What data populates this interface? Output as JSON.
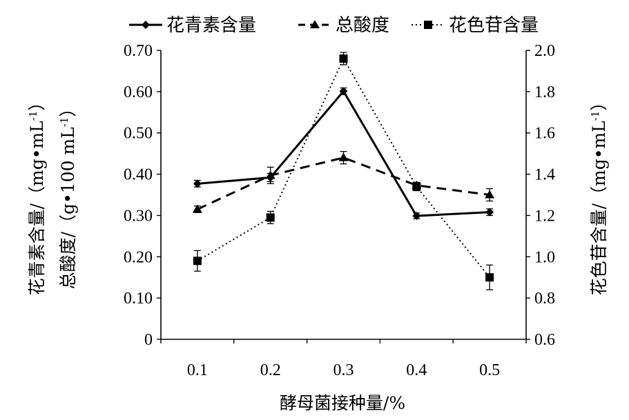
{
  "chart_data": {
    "type": "line",
    "categories": [
      "0.1",
      "0.2",
      "0.3",
      "0.4",
      "0.5"
    ],
    "xlabel": "酵母菌接种量/%",
    "ylabel_left_line1": "花青素含量/（mg•mL",
    "ylabel_left_line2": "总酸度/（g•100 mL",
    "ylabel_right": "花色苷含量/（mg•mL",
    "superscript": "-1",
    "close_paren": "）",
    "ylim_left": [
      0,
      0.7
    ],
    "ylim_right": [
      0.6,
      2.0
    ],
    "yticks_left": [
      "0",
      "0.10",
      "0.20",
      "0.30",
      "0.40",
      "0.50",
      "0.60",
      "0.70"
    ],
    "yticks_right": [
      "0.6",
      "0.8",
      "1.0",
      "1.2",
      "1.4",
      "1.6",
      "1.8",
      "2.0"
    ],
    "grid": false,
    "legend_position": "top",
    "series": [
      {
        "name": "花青素含量",
        "axis": "left",
        "line": "solid",
        "marker": "diamond",
        "values": [
          0.377,
          0.392,
          0.601,
          0.299,
          0.308
        ],
        "errors": [
          0.008,
          0.01,
          0.008,
          0.007,
          0.008
        ]
      },
      {
        "name": "总酸度",
        "axis": "left",
        "line": "dashed",
        "marker": "triangle",
        "values": [
          0.315,
          0.397,
          0.44,
          0.373,
          0.35
        ],
        "errors": [
          0.008,
          0.02,
          0.015,
          0.007,
          0.015
        ]
      },
      {
        "name": "花色苷含量",
        "axis": "right",
        "line": "dotted",
        "marker": "square",
        "values": [
          0.98,
          1.19,
          1.96,
          1.34,
          0.9
        ],
        "errors": [
          0.05,
          0.03,
          0.03,
          0.02,
          0.06
        ]
      }
    ]
  }
}
